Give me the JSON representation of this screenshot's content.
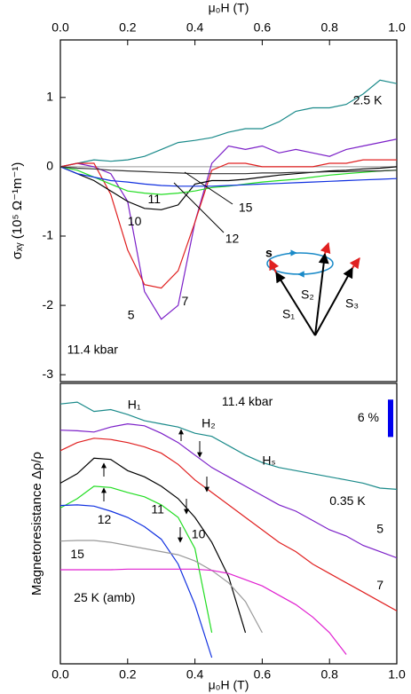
{
  "chart_data": [
    {
      "type": "line",
      "xlabel": "μ₀H (T)",
      "ylabel": "σₓᵧ (10⁵ Ω⁻¹m⁻¹)",
      "xlim": [
        0,
        1
      ],
      "xticks": [
        {
          "value": 0,
          "label": "0.0"
        },
        {
          "value": 0.2,
          "label": "0.2"
        },
        {
          "value": 0.4,
          "label": "0.4"
        },
        {
          "value": 0.6,
          "label": "0.6"
        },
        {
          "value": 0.8,
          "label": "0.8"
        },
        {
          "value": 1,
          "label": "1.0"
        }
      ],
      "ylim": [
        -3.1,
        1.83
      ],
      "yticks": [
        1,
        0,
        -1,
        -2,
        -3
      ],
      "hlines": [
        0
      ],
      "annotations": [
        "11.4 kbar"
      ],
      "inset": {
        "spin": "s",
        "labels": [
          "S₁",
          "S₂",
          "S₃"
        ]
      },
      "x": [
        0,
        0.05,
        0.1,
        0.15,
        0.2,
        0.25,
        0.3,
        0.35,
        0.4,
        0.45,
        0.5,
        0.55,
        0.6,
        0.65,
        0.7,
        0.75,
        0.8,
        0.85,
        0.9,
        0.95,
        1
      ],
      "series": [
        {
          "name": "2.5 K",
          "color": "#1a8a8a",
          "values": [
            0,
            0.05,
            0.1,
            0.08,
            0.1,
            0.15,
            0.25,
            0.35,
            0.38,
            0.42,
            0.5,
            0.55,
            0.55,
            0.65,
            0.8,
            0.85,
            0.85,
            0.9,
            1.05,
            1.25,
            1.2
          ]
        },
        {
          "name": "5",
          "color": "#7b1fc8",
          "values": [
            0,
            0.05,
            0,
            -0.1,
            -0.5,
            -1.8,
            -2.2,
            -2.0,
            -0.8,
            0.05,
            0.3,
            0.25,
            0.3,
            0.2,
            0.25,
            0.2,
            0.15,
            0.25,
            0.3,
            0.35,
            0.4
          ]
        },
        {
          "name": "7",
          "color": "#e02020",
          "values": [
            0,
            0.05,
            0.05,
            -0.4,
            -1.2,
            -1.7,
            -1.75,
            -1.5,
            -0.8,
            -0.05,
            0.05,
            0.05,
            0,
            0,
            0,
            0,
            0.05,
            0.05,
            0.1,
            0.1,
            0.1
          ]
        },
        {
          "name": "10",
          "color": "#000000",
          "values": [
            0,
            -0.1,
            -0.2,
            -0.35,
            -0.5,
            -0.6,
            -0.62,
            -0.55,
            -0.25,
            -0.2,
            -0.2,
            -0.18,
            -0.15,
            -0.12,
            -0.1,
            -0.08,
            -0.06,
            -0.05,
            -0.03,
            -0.02,
            0
          ]
        },
        {
          "name": "11",
          "color": "#22dd22",
          "values": [
            0,
            -0.05,
            -0.15,
            -0.25,
            -0.35,
            -0.38,
            -0.4,
            -0.38,
            -0.35,
            -0.3,
            -0.28,
            -0.25,
            -0.22,
            -0.2,
            -0.18,
            -0.15,
            -0.12,
            -0.1,
            -0.08,
            -0.06,
            -0.05
          ]
        },
        {
          "name": "12",
          "color": "#1030e0",
          "values": [
            0,
            -0.1,
            -0.15,
            -0.2,
            -0.22,
            -0.25,
            -0.27,
            -0.28,
            -0.28,
            -0.28,
            -0.27,
            -0.26,
            -0.25,
            -0.24,
            -0.23,
            -0.22,
            -0.21,
            -0.2,
            -0.19,
            -0.18,
            -0.17
          ]
        },
        {
          "name": "15",
          "color": "#333333",
          "values": [
            0,
            -0.02,
            -0.03,
            -0.05,
            -0.06,
            -0.07,
            -0.08,
            -0.09,
            -0.1,
            -0.1,
            -0.1,
            -0.1,
            -0.09,
            -0.09,
            -0.08,
            -0.08,
            -0.07,
            -0.07,
            -0.06,
            -0.06,
            -0.05
          ]
        }
      ]
    },
    {
      "type": "line",
      "xlabel": "μ₀H (T)",
      "ylabel": "Magnetoresistance Δρ/ρ",
      "xlim": [
        0,
        1
      ],
      "xticks": [
        {
          "value": 0,
          "label": "0.0"
        },
        {
          "value": 0.2,
          "label": "0.2"
        },
        {
          "value": 0.4,
          "label": "0.4"
        },
        {
          "value": 0.6,
          "label": "0.6"
        },
        {
          "value": 0.8,
          "label": "0.8"
        },
        {
          "value": 1,
          "label": "1.0"
        }
      ],
      "ylim": [
        0,
        45
      ],
      "scale_bar": {
        "value": 6,
        "label": "6 %",
        "color": "#0000ee"
      },
      "annotations": [
        "11.4 kbar",
        "H₁",
        "H₂",
        "Hₛ"
      ],
      "x": [
        0,
        0.05,
        0.1,
        0.15,
        0.2,
        0.25,
        0.3,
        0.35,
        0.4,
        0.45,
        0.5,
        0.55,
        0.6,
        0.65,
        0.7,
        0.75,
        0.8,
        0.85,
        0.9,
        0.95,
        1
      ],
      "series": [
        {
          "name": "0.35 K",
          "color": "#1a8a8a",
          "values": [
            41.7,
            42,
            40.5,
            40.8,
            40,
            39,
            38.5,
            38,
            37,
            36.5,
            35,
            33.5,
            32.3,
            31.5,
            31,
            30.5,
            30,
            29.5,
            29,
            28.2,
            28
          ]
        },
        {
          "name": "5",
          "color": "#7b1fc8",
          "values": [
            37.5,
            37.4,
            37.2,
            38,
            38.5,
            38.2,
            37,
            35.5,
            33.5,
            31.5,
            30,
            28.5,
            27,
            25.5,
            24.5,
            23,
            21.5,
            20.5,
            19,
            18,
            17
          ]
        },
        {
          "name": "7",
          "color": "#e02020",
          "values": [
            34.2,
            35.5,
            36.2,
            36,
            35.5,
            34.8,
            33.8,
            32,
            29.5,
            27.5,
            25.5,
            23.5,
            21.5,
            19.5,
            18,
            16,
            14.5,
            13,
            11.5,
            10,
            8.5
          ]
        },
        {
          "name": "10",
          "color": "#000000",
          "values": [
            29,
            30.5,
            33,
            32.8,
            31,
            30,
            28.5,
            26.5,
            23.5,
            19.5,
            14,
            5,
            null,
            null,
            null,
            null,
            null,
            null,
            null,
            null,
            null
          ]
        },
        {
          "name": "11",
          "color": "#22dd22",
          "values": [
            25,
            26.5,
            28.5,
            28.3,
            27.5,
            26.8,
            25.5,
            23.5,
            18.5,
            5,
            null,
            null,
            null,
            null,
            null,
            null,
            null,
            null,
            null,
            null,
            null
          ]
        },
        {
          "name": "12",
          "color": "#1030e0",
          "values": [
            25.4,
            25.5,
            25.3,
            24.5,
            23.5,
            22,
            20,
            16,
            9.5,
            1,
            null,
            null,
            null,
            null,
            null,
            null,
            null,
            null,
            null,
            null,
            null
          ]
        },
        {
          "name": "15",
          "color": "#999999",
          "values": [
            19.7,
            19.8,
            19.8,
            19.5,
            19,
            18.5,
            18,
            17.5,
            16.5,
            15,
            13,
            10,
            5,
            null,
            null,
            null,
            null,
            null,
            null,
            null,
            null
          ]
        },
        {
          "name": "25 K (amb)",
          "color": "#e020d0",
          "values": [
            15.1,
            15.1,
            15.1,
            15.1,
            15.2,
            15.2,
            15.2,
            15.2,
            15.2,
            15,
            14.5,
            13.5,
            12.5,
            11,
            9.5,
            7.5,
            5,
            1.5,
            null,
            null,
            null
          ]
        }
      ]
    }
  ]
}
